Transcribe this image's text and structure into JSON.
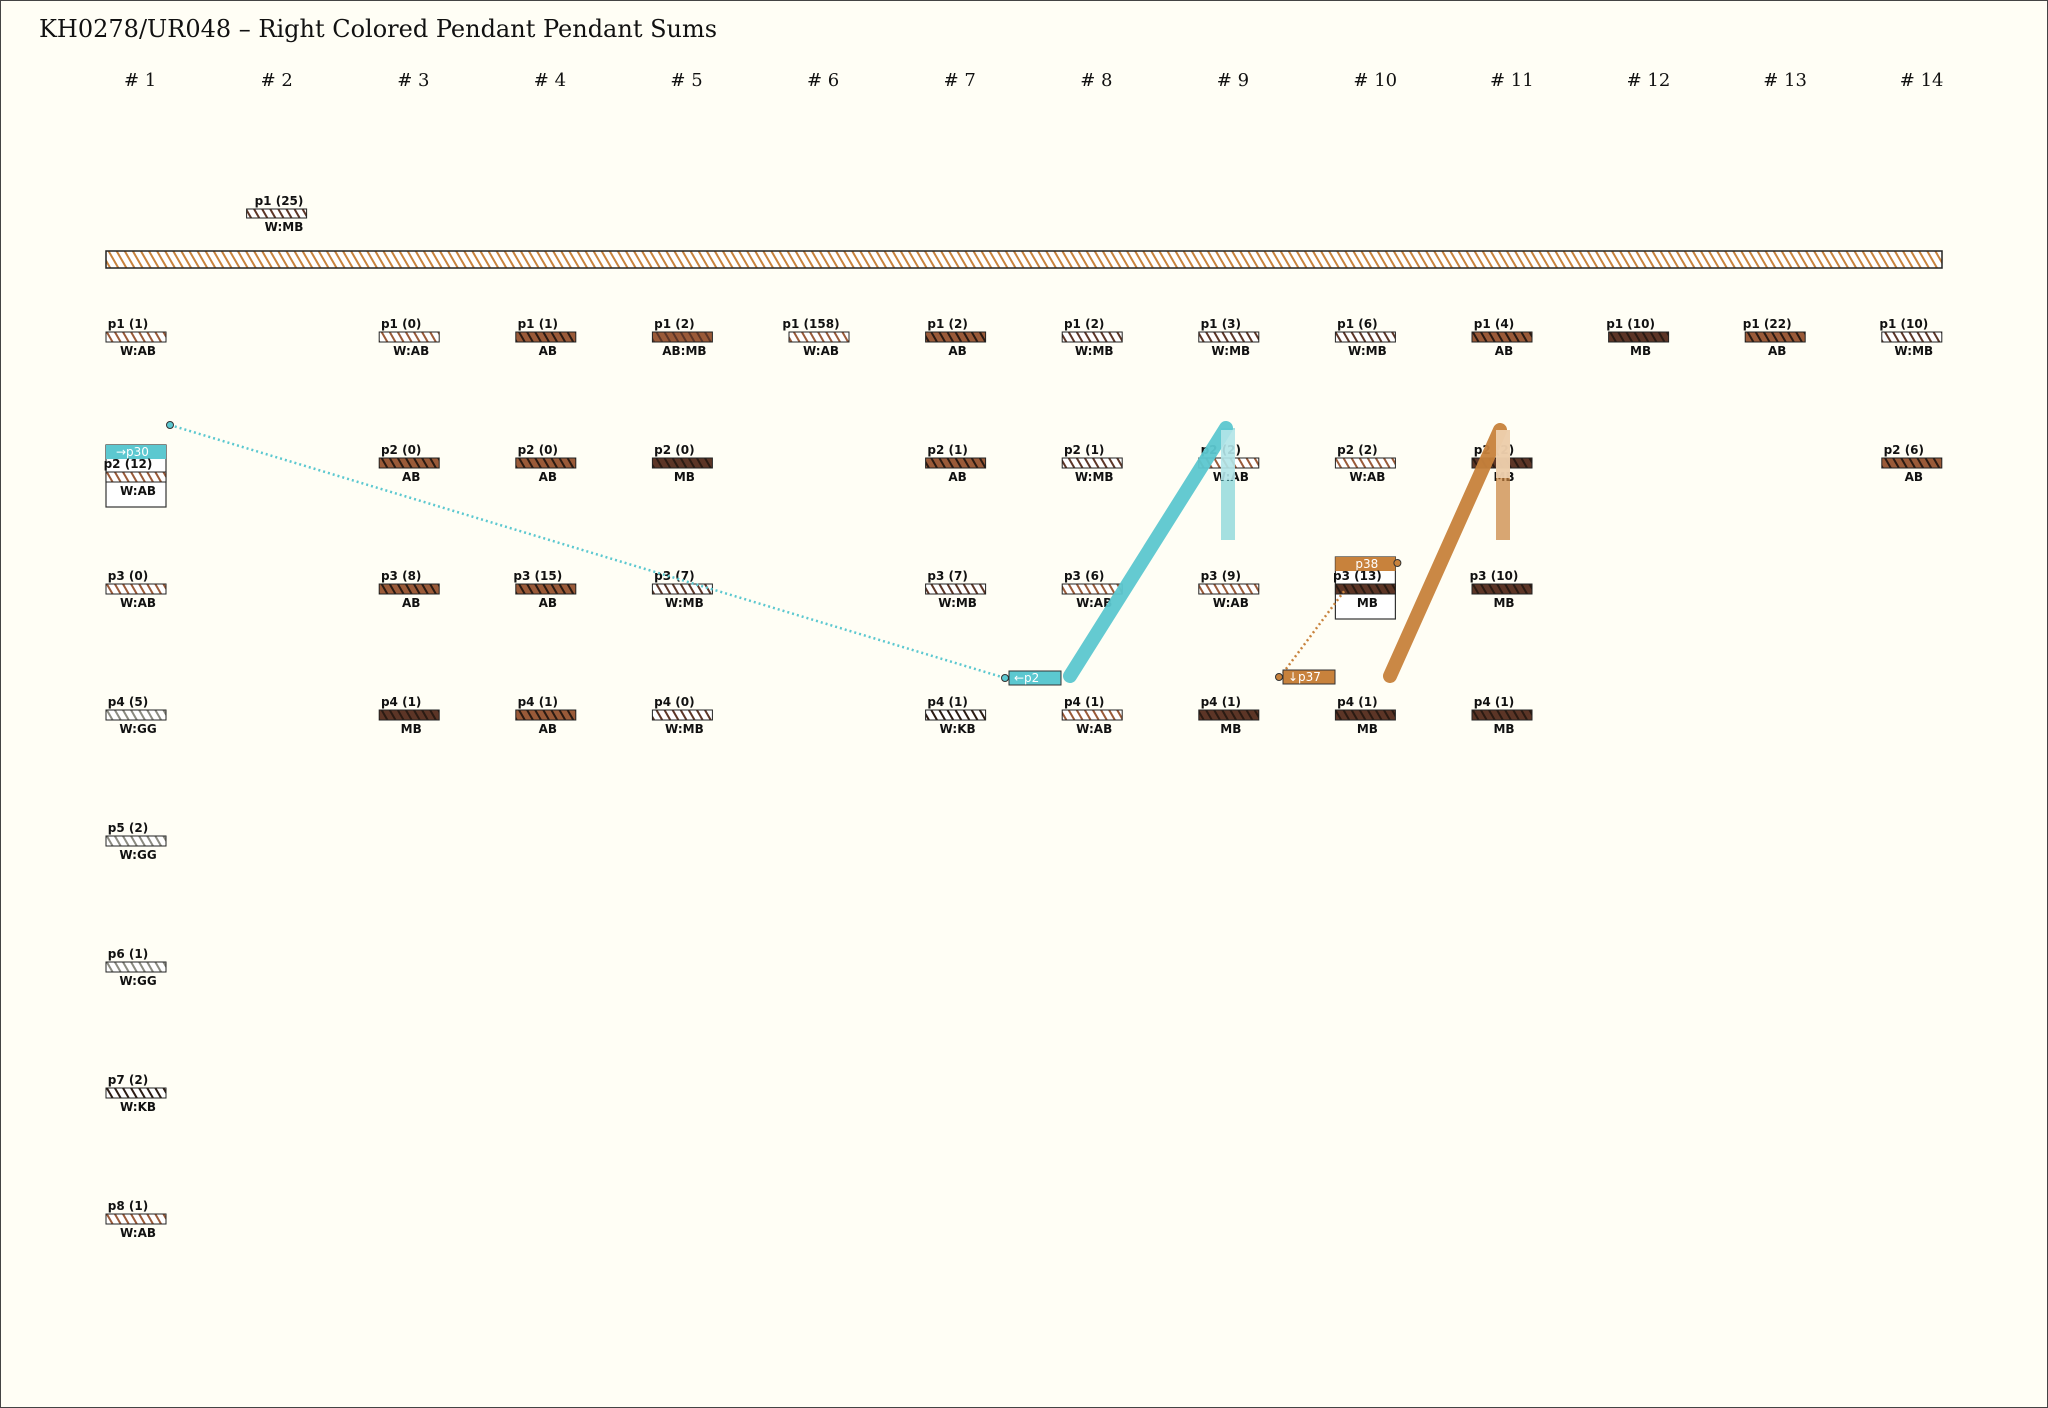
{
  "title": "KH0278/UR048 – Right Colored Pendant Pendant Sums",
  "groups": [
    "# 1",
    "# 2",
    "# 3",
    "# 4",
    "# 5",
    "# 6",
    "# 7",
    "# 8",
    "# 9",
    "# 10",
    "# 11",
    "# 12",
    "# 13",
    "# 14"
  ],
  "colors": {
    "W": "#ffffff",
    "AB": "#9a5a38",
    "MB": "#5c3526",
    "KB": "#2a1a12",
    "GG": "#8a8a80",
    "link_cyan": "#5cc8d0",
    "link_orange": "#c8823c",
    "background": "#fffef5"
  },
  "top_cord": {
    "label": "p1 (25)",
    "color": "W:MB"
  },
  "cords": [
    {
      "group": 1,
      "row": 1,
      "label": "p1 (1)",
      "color": "W:AB"
    },
    {
      "group": 1,
      "row": 2,
      "label": "p2 (12)",
      "color": "W:AB",
      "tag": "→p30"
    },
    {
      "group": 1,
      "row": 3,
      "label": "p3 (0)",
      "color": "W:AB"
    },
    {
      "group": 1,
      "row": 4,
      "label": "p4 (5)",
      "color": "W:GG"
    },
    {
      "group": 1,
      "row": 5,
      "label": "p5 (2)",
      "color": "W:GG"
    },
    {
      "group": 1,
      "row": 6,
      "label": "p6 (1)",
      "color": "W:GG"
    },
    {
      "group": 1,
      "row": 7,
      "label": "p7 (2)",
      "color": "W:KB"
    },
    {
      "group": 1,
      "row": 8,
      "label": "p8 (1)",
      "color": "W:AB"
    },
    {
      "group": 3,
      "row": 1,
      "label": "p1 (0)",
      "color": "W:AB"
    },
    {
      "group": 3,
      "row": 2,
      "label": "p2 (0)",
      "color": "AB"
    },
    {
      "group": 3,
      "row": 3,
      "label": "p3 (8)",
      "color": "AB"
    },
    {
      "group": 3,
      "row": 4,
      "label": "p4 (1)",
      "color": "MB"
    },
    {
      "group": 4,
      "row": 1,
      "label": "p1 (1)",
      "color": "AB"
    },
    {
      "group": 4,
      "row": 2,
      "label": "p2 (0)",
      "color": "AB"
    },
    {
      "group": 4,
      "row": 3,
      "label": "p3 (15)",
      "color": "AB"
    },
    {
      "group": 4,
      "row": 4,
      "label": "p4 (1)",
      "color": "AB"
    },
    {
      "group": 5,
      "row": 1,
      "label": "p1 (2)",
      "color": "AB:MB"
    },
    {
      "group": 5,
      "row": 2,
      "label": "p2 (0)",
      "color": "MB"
    },
    {
      "group": 5,
      "row": 3,
      "label": "p3 (7)",
      "color": "W:MB"
    },
    {
      "group": 5,
      "row": 4,
      "label": "p4 (0)",
      "color": "W:MB"
    },
    {
      "group": 6,
      "row": 1,
      "label": "p1 (158)",
      "color": "W:AB"
    },
    {
      "group": 7,
      "row": 1,
      "label": "p1 (2)",
      "color": "AB"
    },
    {
      "group": 7,
      "row": 2,
      "label": "p2 (1)",
      "color": "AB"
    },
    {
      "group": 7,
      "row": 3,
      "label": "p3 (7)",
      "color": "W:MB"
    },
    {
      "group": 7,
      "row": 4,
      "label": "p4 (1)",
      "color": "W:KB"
    },
    {
      "group": 8,
      "row": 1,
      "label": "p1 (2)",
      "color": "W:MB"
    },
    {
      "group": 8,
      "row": 2,
      "label": "p2 (1)",
      "color": "W:MB"
    },
    {
      "group": 8,
      "row": 3,
      "label": "p3 (6)",
      "color": "W:AB"
    },
    {
      "group": 8,
      "row": 4,
      "label": "p4 (1)",
      "color": "W:AB"
    },
    {
      "group": 9,
      "row": 1,
      "label": "p1 (3)",
      "color": "W:MB"
    },
    {
      "group": 9,
      "row": 2,
      "label": "p2 (2)",
      "color": "W:AB"
    },
    {
      "group": 9,
      "row": 3,
      "label": "p3 (9)",
      "color": "W:AB"
    },
    {
      "group": 9,
      "row": 4,
      "label": "p4 (1)",
      "color": "MB"
    },
    {
      "group": 10,
      "row": 1,
      "label": "p1 (6)",
      "color": "W:MB"
    },
    {
      "group": 10,
      "row": 2,
      "label": "p2 (2)",
      "color": "W:AB"
    },
    {
      "group": 10,
      "row": 3,
      "label": "p3 (13)",
      "color": "MB",
      "tag": "p38"
    },
    {
      "group": 10,
      "row": 4,
      "label": "p4 (1)",
      "color": "MB"
    },
    {
      "group": 11,
      "row": 1,
      "label": "p1 (4)",
      "color": "AB"
    },
    {
      "group": 11,
      "row": 2,
      "label": "p2 (2)",
      "color": "MB"
    },
    {
      "group": 11,
      "row": 3,
      "label": "p3 (10)",
      "color": "MB"
    },
    {
      "group": 11,
      "row": 4,
      "label": "p4 (1)",
      "color": "MB"
    },
    {
      "group": 12,
      "row": 1,
      "label": "p1 (10)",
      "color": "MB"
    },
    {
      "group": 13,
      "row": 1,
      "label": "p1 (22)",
      "color": "AB"
    },
    {
      "group": 14,
      "row": 1,
      "label": "p1 (10)",
      "color": "W:MB"
    },
    {
      "group": 14,
      "row": 2,
      "label": "p2 (6)",
      "color": "AB"
    }
  ],
  "pointers": {
    "p2_tag": "←p2",
    "p37_tag": "↓p37"
  }
}
